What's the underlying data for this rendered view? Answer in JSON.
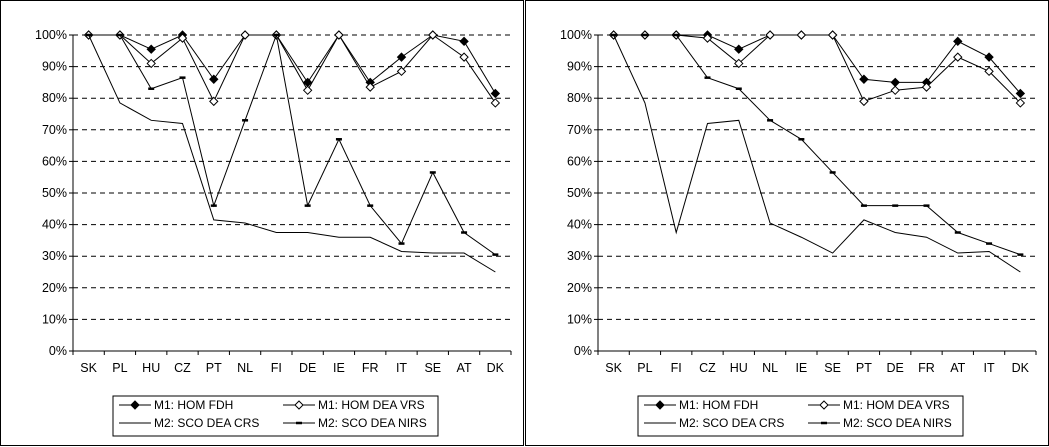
{
  "chart_data": [
    {
      "type": "line",
      "categories": [
        "SK",
        "PL",
        "HU",
        "CZ",
        "PT",
        "NL",
        "FI",
        "DE",
        "IE",
        "FR",
        "IT",
        "SE",
        "AT",
        "DK"
      ],
      "ylim": [
        0,
        100
      ],
      "y_ticks": [
        "0%",
        "10%",
        "20%",
        "30%",
        "40%",
        "50%",
        "60%",
        "70%",
        "80%",
        "90%",
        "100%"
      ],
      "grid": "horizontal-dashed",
      "legend_position": "bottom",
      "series": [
        {
          "name": "M1: HOM FDH",
          "marker": "filled-diamond",
          "values": [
            100,
            100,
            95.5,
            100,
            86,
            100,
            100,
            85,
            100,
            85,
            93,
            100,
            98,
            81.5
          ]
        },
        {
          "name": "M1: HOM DEA VRS",
          "marker": "open-diamond",
          "values": [
            100,
            100,
            91,
            99,
            79,
            100,
            100,
            82.5,
            100,
            83.5,
            88.5,
            100,
            93,
            78.5
          ]
        },
        {
          "name": "M2: SCO DEA CRS",
          "marker": "none",
          "values": [
            100,
            78.5,
            73,
            72,
            41.5,
            40.5,
            37.5,
            37.5,
            36,
            36,
            31.5,
            31,
            31,
            25
          ]
        },
        {
          "name": "M2: SCO DEA NIRS",
          "marker": "dash",
          "values": [
            100,
            100,
            83,
            86.5,
            46,
            73,
            100,
            46,
            67,
            46,
            34,
            56.5,
            37.5,
            30.5
          ]
        }
      ]
    },
    {
      "type": "line",
      "categories": [
        "SK",
        "PL",
        "FI",
        "CZ",
        "HU",
        "NL",
        "IE",
        "SE",
        "PT",
        "DE",
        "FR",
        "AT",
        "IT",
        "DK"
      ],
      "ylim": [
        0,
        100
      ],
      "y_ticks": [
        "0%",
        "10%",
        "20%",
        "30%",
        "40%",
        "50%",
        "60%",
        "70%",
        "80%",
        "90%",
        "100%"
      ],
      "grid": "horizontal-dashed",
      "legend_position": "bottom",
      "series": [
        {
          "name": "M1: HOM FDH",
          "marker": "filled-diamond",
          "values": [
            100,
            100,
            100,
            100,
            95.5,
            100,
            100,
            100,
            86,
            85,
            85,
            98,
            93,
            81.5
          ]
        },
        {
          "name": "M1: HOM DEA VRS",
          "marker": "open-diamond",
          "values": [
            100,
            100,
            100,
            99,
            91,
            100,
            100,
            100,
            79,
            82.5,
            83.5,
            93,
            88.5,
            78.5
          ]
        },
        {
          "name": "M2: SCO DEA CRS",
          "marker": "none",
          "values": [
            100,
            78.5,
            37.5,
            72,
            73,
            40.5,
            36,
            31,
            41.5,
            37.5,
            36,
            31,
            31.5,
            25
          ]
        },
        {
          "name": "M2: SCO DEA NIRS",
          "marker": "dash",
          "values": [
            100,
            100,
            100,
            86.5,
            83,
            73,
            67,
            56.5,
            46,
            46,
            46,
            37.5,
            34,
            30.5
          ]
        }
      ]
    }
  ]
}
